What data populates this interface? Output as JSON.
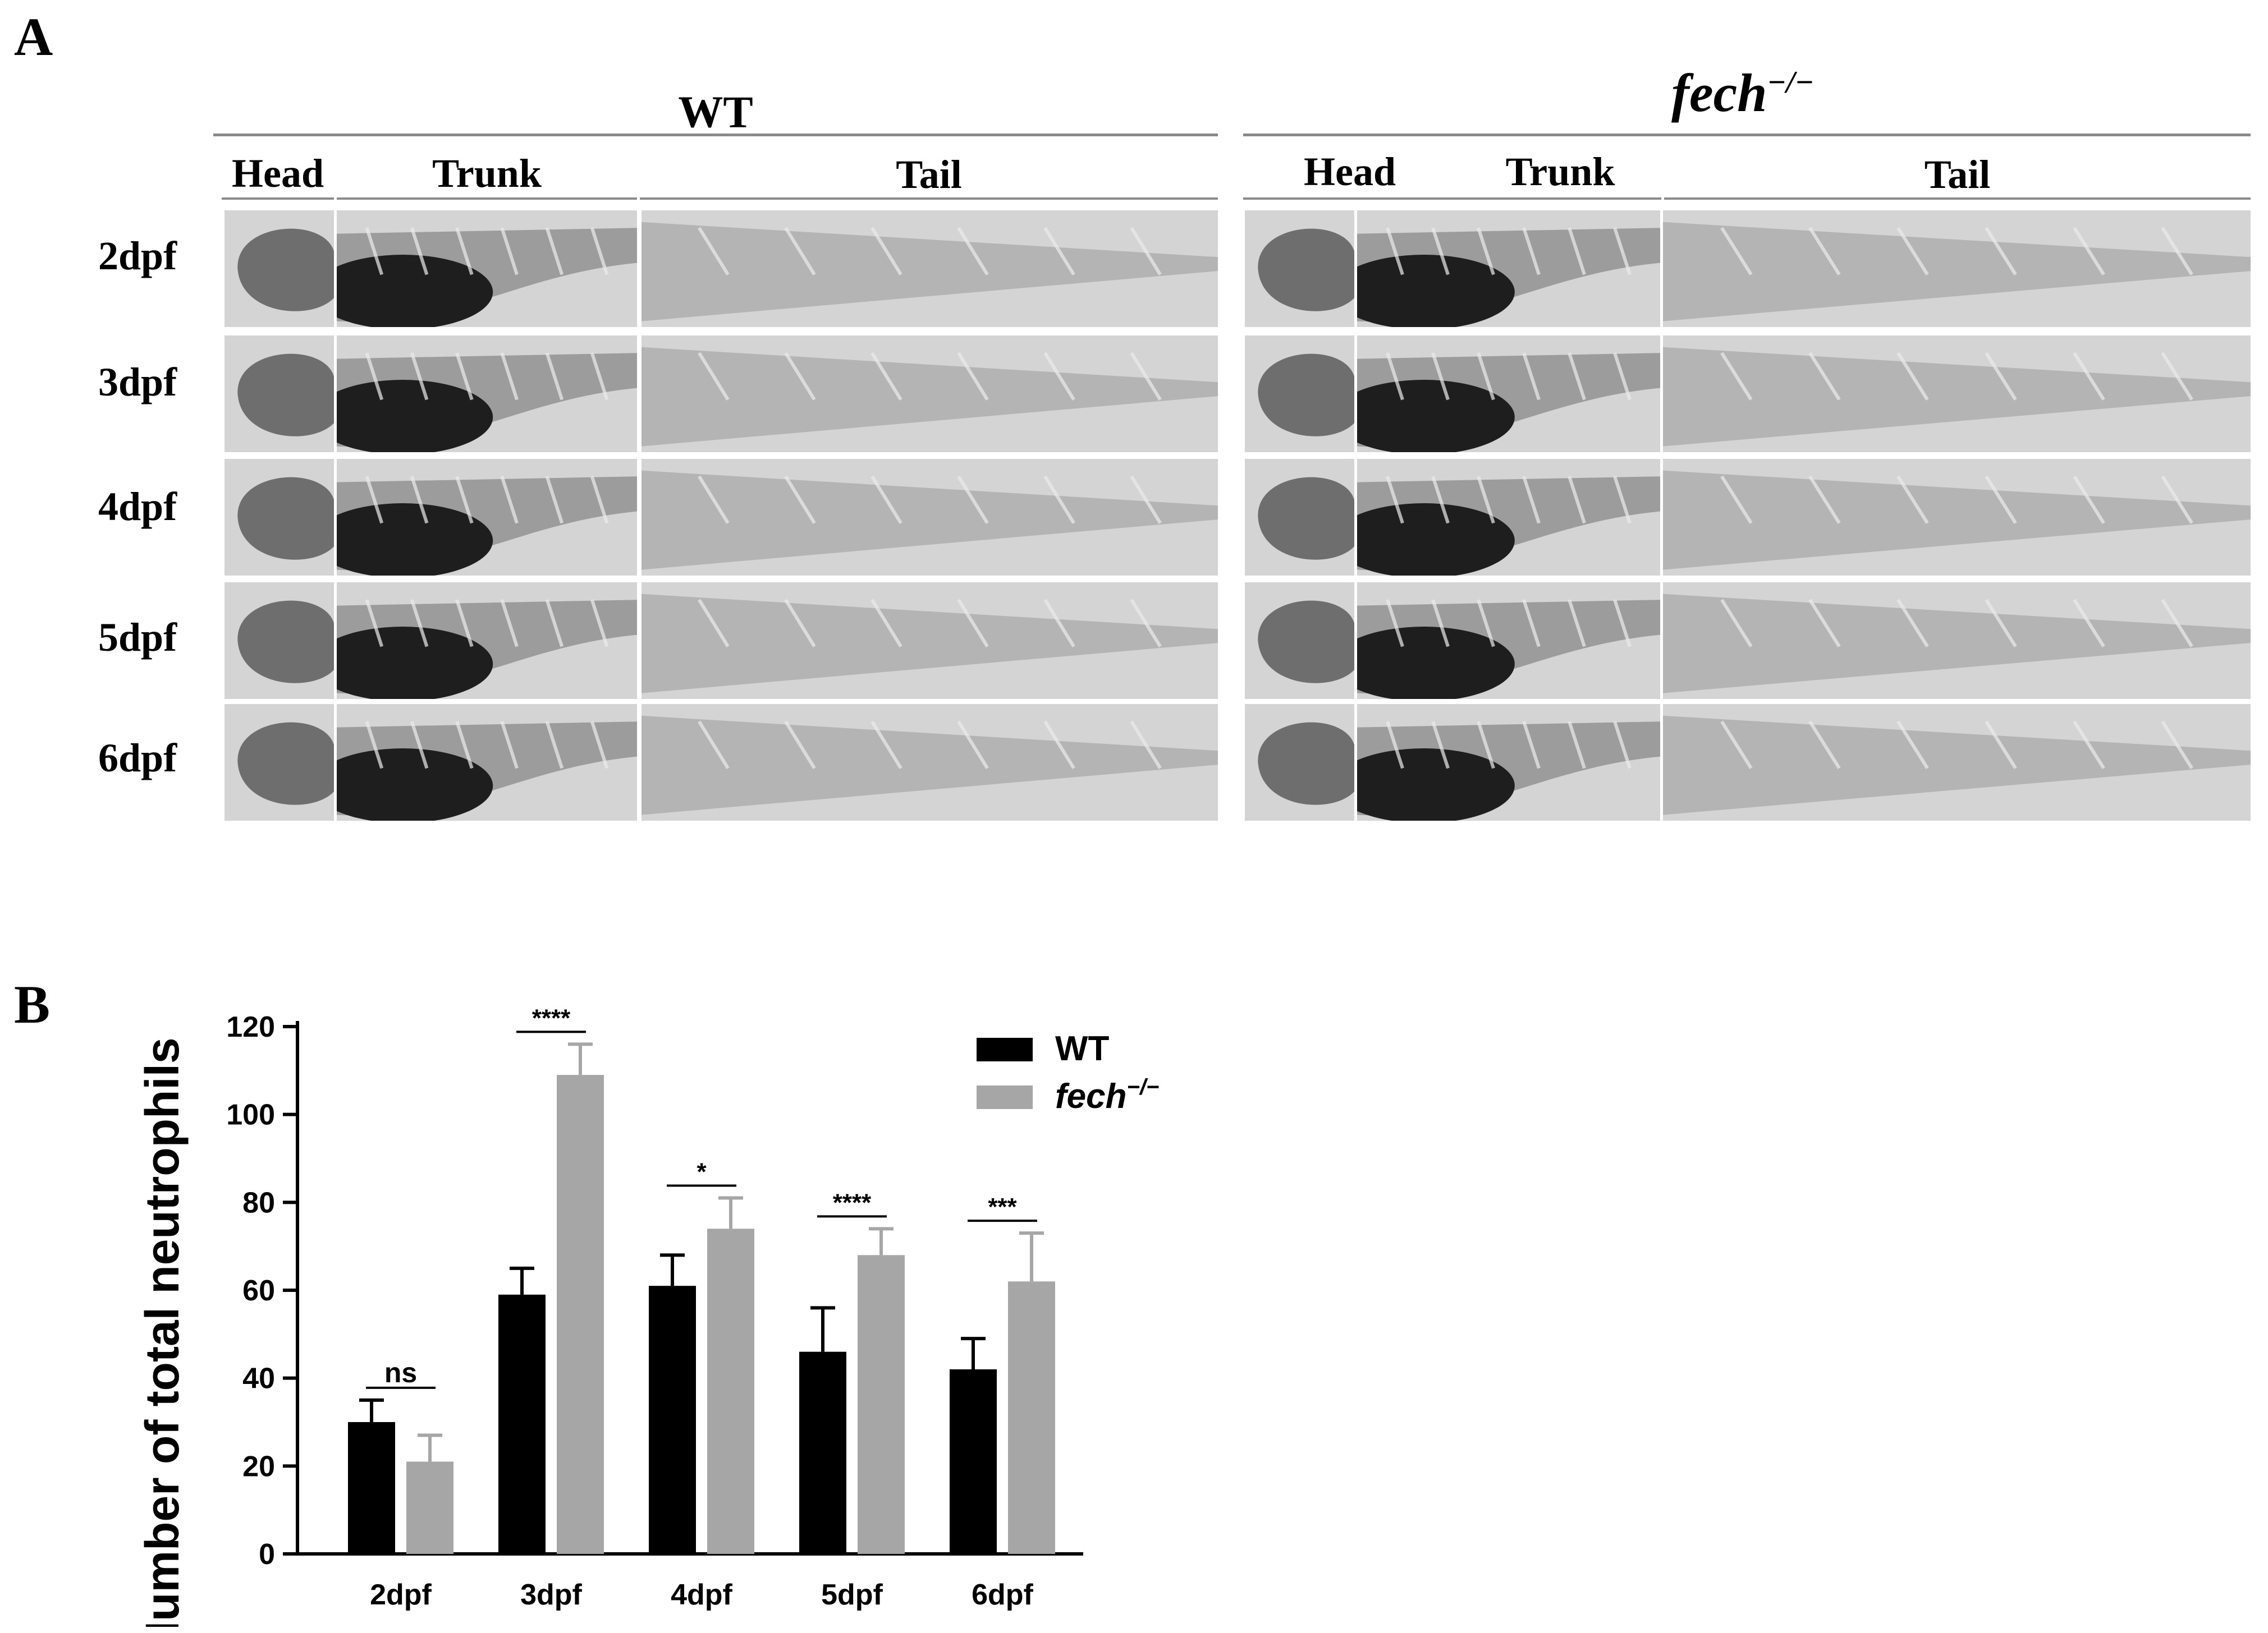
{
  "panel_a": {
    "letter": "A",
    "groups": [
      {
        "title": "WT",
        "sup": ""
      },
      {
        "title": "fech",
        "sup": "−/−"
      }
    ],
    "sections": [
      "Head",
      "Trunk",
      "Tail"
    ],
    "rows": [
      "2dpf",
      "3dpf",
      "4dpf",
      "5dpf",
      "6dpf"
    ]
  },
  "panel_b": {
    "letter": "B"
  },
  "chart_data": {
    "type": "bar",
    "title": "",
    "ylabel": "Number of total neutrophils",
    "xlabel": "",
    "categories": [
      "2dpf",
      "3dpf",
      "4dpf",
      "5dpf",
      "6dpf"
    ],
    "ylim": [
      0,
      120
    ],
    "yticks": [
      0,
      20,
      40,
      60,
      80,
      100,
      120
    ],
    "series": [
      {
        "name": "WT",
        "color": "#000000",
        "values": [
          30,
          59,
          61,
          46,
          42
        ],
        "errors": [
          5,
          6,
          7,
          10,
          7
        ]
      },
      {
        "name": "fech",
        "name_sup": "−/−",
        "color": "#a6a6a6",
        "values": [
          21,
          109,
          74,
          68,
          62
        ],
        "errors": [
          6,
          7,
          7,
          6,
          11
        ]
      }
    ],
    "significance": [
      "ns",
      "****",
      "*",
      "****",
      "***"
    ],
    "legend_position": "top-right",
    "grid": false
  }
}
